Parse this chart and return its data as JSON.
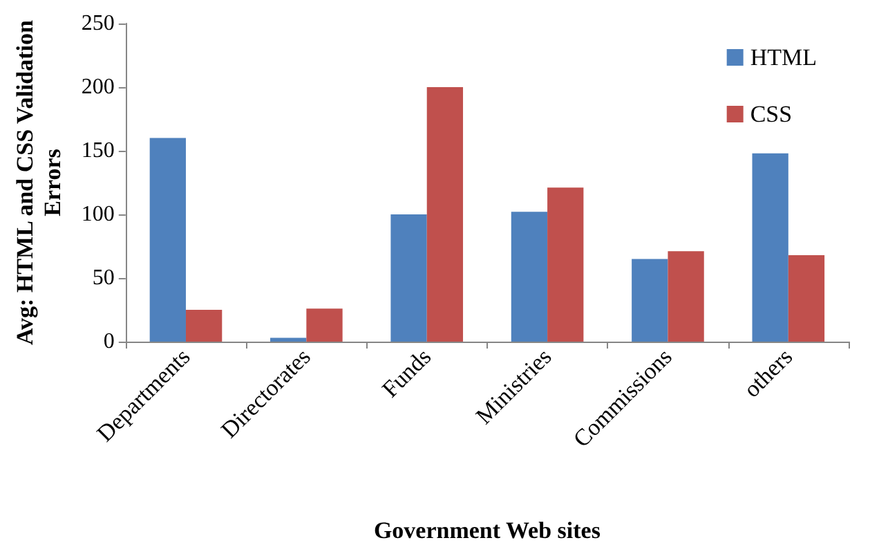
{
  "chart_data": {
    "type": "bar",
    "xlabel": "Government Web sites",
    "ylabel": "Avg: HTML and CSS Validation Errors",
    "categories": [
      "Departments",
      "Directorates",
      "Funds",
      "Ministries",
      "Commissions",
      "others"
    ],
    "series": [
      {
        "name": "HTML",
        "color": "#4f81bd",
        "values": [
          160,
          3,
          100,
          102,
          65,
          148
        ]
      },
      {
        "name": "CSS",
        "color": "#c0504d",
        "values": [
          25,
          26,
          200,
          121,
          71,
          68
        ]
      }
    ],
    "ylim": [
      0,
      250
    ],
    "yticks": [
      0,
      50,
      100,
      150,
      200,
      250
    ],
    "grid": false,
    "legend": "top right"
  }
}
